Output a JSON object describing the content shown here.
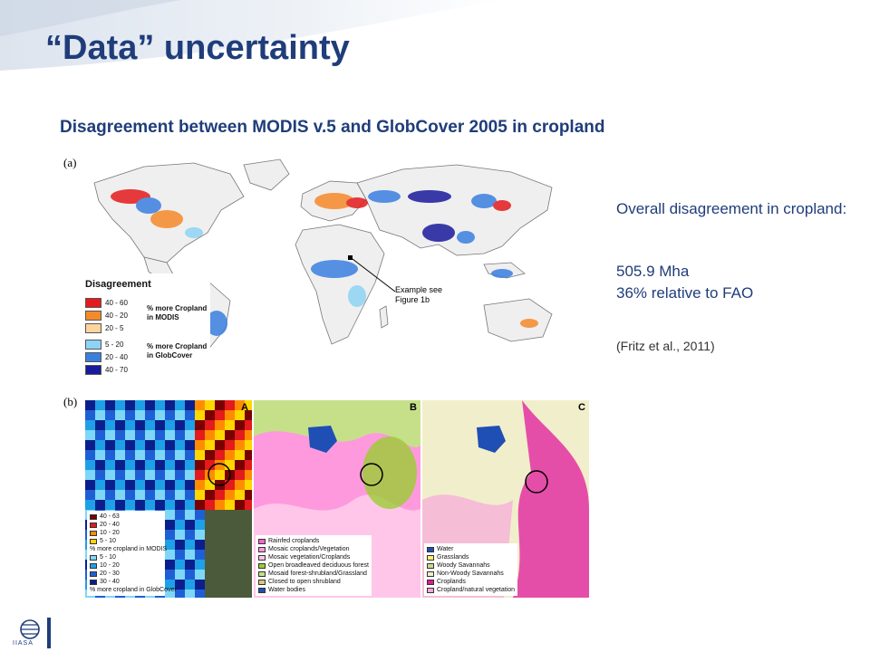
{
  "slide": {
    "title": "“Data” uncertainty",
    "subtitle": "Disagreement between MODIS v.5 and GlobCover 2005 in cropland"
  },
  "figure": {
    "panel_a": {
      "label": "(a)",
      "legend_title": "Disagreement",
      "legend_items": [
        {
          "range": "40 - 60",
          "color": "#e41a1c"
        },
        {
          "range": "40 - 20",
          "color": "#f58a2b"
        },
        {
          "range": "20 - 5",
          "color": "#fdd49e"
        },
        {
          "range": "5 - 20",
          "color": "#8ed3f5"
        },
        {
          "range": "20 - 40",
          "color": "#3a7fe0"
        },
        {
          "range": "40 - 70",
          "color": "#1a1a9c"
        }
      ],
      "legend_group_modis": "% more Cropland in MODIS",
      "legend_group_globcover": "% more Cropland in GlobCover",
      "example_label": "Example see Figure 1b"
    },
    "panel_b": {
      "label": "(b)",
      "sub_a": {
        "letter": "A",
        "note_top": "% more cropland in MODIS",
        "note_bottom": "% more cropland in GlobCover",
        "items_top": [
          {
            "range": "40 - 63",
            "color": "#7a0000"
          },
          {
            "range": "20 - 40",
            "color": "#e41a1c"
          },
          {
            "range": "10 - 20",
            "color": "#ff8c00"
          },
          {
            "range": "5 - 10",
            "color": "#ffd700"
          }
        ],
        "items_bottom": [
          {
            "range": "5 - 10",
            "color": "#7fd7f7"
          },
          {
            "range": "10 - 20",
            "color": "#1ea0e6"
          },
          {
            "range": "20 - 30",
            "color": "#1f5fd6"
          },
          {
            "range": "30 - 40",
            "color": "#0a1f8c"
          }
        ]
      },
      "sub_b": {
        "letter": "B",
        "items": [
          {
            "label": "Rainfed croplands",
            "color": "#ff66cc"
          },
          {
            "label": "Mosaic croplands/Vegetation",
            "color": "#ff99dd"
          },
          {
            "label": "Mosaic vegetation/Croplands",
            "color": "#ffc6ea"
          },
          {
            "label": "Open broadleaved deciduous forest",
            "color": "#9acd32"
          },
          {
            "label": "Mosaid forest-shrubland/Grassland",
            "color": "#c6e08a"
          },
          {
            "label": "Closed to open shrubland",
            "color": "#d9c87a"
          },
          {
            "label": "Water bodies",
            "color": "#1f4fb5"
          }
        ]
      },
      "sub_c": {
        "letter": "C",
        "items": [
          {
            "label": "Water",
            "color": "#1f4fb5"
          },
          {
            "label": "Grasslands",
            "color": "#ffef7a"
          },
          {
            "label": "Woody Savannahs",
            "color": "#c9d98a"
          },
          {
            "label": "Non-Woody Savannahs",
            "color": "#f1eecb"
          },
          {
            "label": "Croplands",
            "color": "#e0189c"
          },
          {
            "label": "Cropland/natural vegetation",
            "color": "#f7a8da"
          }
        ]
      }
    }
  },
  "side_text": {
    "line1": "Overall disagreement in cropland:",
    "line2": "505.9 Mha",
    "line3": "36% relative to FAO",
    "citation": "(Fritz et al., 2011)"
  },
  "logo": {
    "text": "IIASA",
    "icon": "iiasa-globe-icon"
  },
  "colors": {
    "title": "#1f3d7a",
    "accent": "#1f3d7a"
  }
}
